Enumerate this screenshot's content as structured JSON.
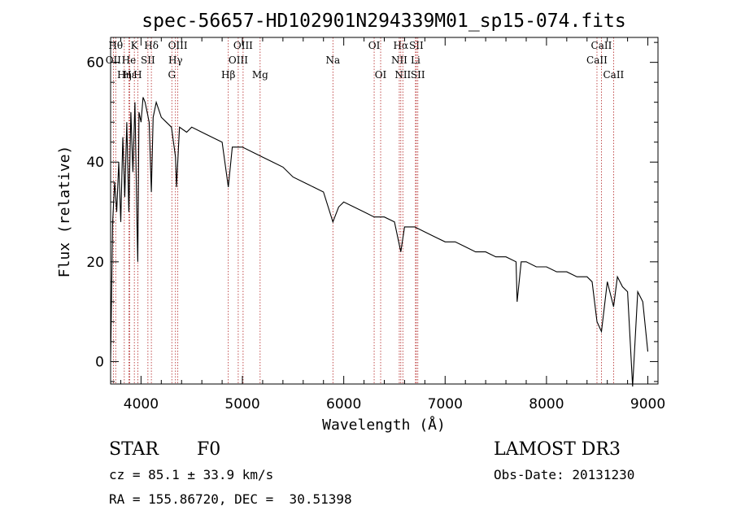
{
  "chart_data": {
    "type": "line",
    "title": "spec-56657-HD102901N294339M01_sp15-074.fits",
    "xlabel": "Wavelength (Å)",
    "ylabel": "Flux (relative)",
    "xlim": [
      3700,
      9100
    ],
    "ylim": [
      -4.5,
      65
    ],
    "x_ticks": [
      4000,
      5000,
      6000,
      7000,
      8000,
      9000
    ],
    "y_ticks": [
      0,
      20,
      40,
      60
    ],
    "x_tick_labels": [
      "4000",
      "5000",
      "6000",
      "7000",
      "8000",
      "9000"
    ],
    "y_tick_labels": [
      "0",
      "20",
      "40",
      "60"
    ],
    "series": [
      {
        "name": "flux",
        "x": [
          3700,
          3720,
          3740,
          3760,
          3780,
          3800,
          3820,
          3840,
          3860,
          3880,
          3900,
          3920,
          3940,
          3960,
          3968,
          3980,
          4000,
          4020,
          4040,
          4060,
          4080,
          4102,
          4120,
          4150,
          4200,
          4250,
          4300,
          4340,
          4350,
          4380,
          4450,
          4500,
          4600,
          4700,
          4800,
          4861,
          4900,
          5000,
          5100,
          5200,
          5300,
          5400,
          5500,
          5600,
          5700,
          5800,
          5893,
          5950,
          6000,
          6100,
          6200,
          6300,
          6400,
          6500,
          6563,
          6600,
          6700,
          6800,
          6900,
          7000,
          7100,
          7200,
          7300,
          7400,
          7500,
          7600,
          7700,
          7710,
          7750,
          7800,
          7900,
          8000,
          8100,
          8200,
          8300,
          8400,
          8450,
          8498,
          8542,
          8600,
          8662,
          8700,
          8750,
          8800,
          8850,
          8900,
          8950,
          9000
        ],
        "y": [
          0,
          28,
          36,
          30,
          40,
          28,
          45,
          33,
          48,
          30,
          50,
          38,
          52,
          28,
          20,
          50,
          48,
          53,
          52,
          50,
          48,
          34,
          49,
          52,
          49,
          48,
          47,
          41,
          35,
          47,
          46,
          47,
          46,
          45,
          44,
          35,
          43,
          43,
          42,
          41,
          40,
          39,
          37,
          36,
          35,
          34,
          28,
          31,
          32,
          31,
          30,
          29,
          29,
          28,
          22,
          27,
          27,
          26,
          25,
          24,
          24,
          23,
          22,
          22,
          21,
          21,
          20,
          12,
          20,
          20,
          19,
          19,
          18,
          18,
          17,
          17,
          16,
          8,
          6,
          16,
          11,
          17,
          15,
          14,
          -5,
          14,
          12,
          2
        ]
      }
    ],
    "line_marks": [
      {
        "label": "Hθ",
        "wl": 3750,
        "row": 0
      },
      {
        "label": "OII",
        "wl": 3727,
        "row": 1
      },
      {
        "label": "Hη",
        "wl": 3835,
        "row": 2
      },
      {
        "label": "Hε",
        "wl": 3889,
        "row": 2
      },
      {
        "label": "K",
        "wl": 3934,
        "row": 0
      },
      {
        "label": "He",
        "wl": 3880,
        "row": 1
      },
      {
        "label": "H",
        "wl": 3968,
        "row": 2
      },
      {
        "label": "SII",
        "wl": 4068,
        "row": 1
      },
      {
        "label": "Hδ",
        "wl": 4102,
        "row": 0
      },
      {
        "label": "OIII",
        "wl": 4363,
        "row": 0
      },
      {
        "label": "Hγ",
        "wl": 4340,
        "row": 1
      },
      {
        "label": "G",
        "wl": 4304,
        "row": 2
      },
      {
        "label": "Hβ",
        "wl": 4861,
        "row": 2
      },
      {
        "label": "OIII",
        "wl": 5007,
        "row": 0
      },
      {
        "label": "OIII",
        "wl": 4959,
        "row": 1
      },
      {
        "label": "Mg",
        "wl": 5175,
        "row": 2
      },
      {
        "label": "Na",
        "wl": 5893,
        "row": 1
      },
      {
        "label": "OI",
        "wl": 6300,
        "row": 0
      },
      {
        "label": "OI",
        "wl": 6364,
        "row": 2
      },
      {
        "label": "Hα",
        "wl": 6563,
        "row": 0
      },
      {
        "label": "NII",
        "wl": 6548,
        "row": 1
      },
      {
        "label": "NII",
        "wl": 6583,
        "row": 2
      },
      {
        "label": "SII",
        "wl": 6716,
        "row": 0
      },
      {
        "label": "Li",
        "wl": 6708,
        "row": 1
      },
      {
        "label": "SII",
        "wl": 6731,
        "row": 2
      },
      {
        "label": "CaII",
        "wl": 8542,
        "row": 0
      },
      {
        "label": "CaII",
        "wl": 8498,
        "row": 1
      },
      {
        "label": "CaII",
        "wl": 8662,
        "row": 2
      }
    ]
  },
  "info": {
    "object_class": "STAR",
    "subclass": "F0",
    "survey": "LAMOST DR3",
    "cz": "cz = 85.1 ± 33.9 km/s",
    "obs_date": "Obs-Date: 20131230",
    "coords": "RA = 155.86720, DEC =  30.51398"
  },
  "colors": {
    "line_marker": "#b22222",
    "spectrum": "#000000",
    "axes": "#000000"
  }
}
